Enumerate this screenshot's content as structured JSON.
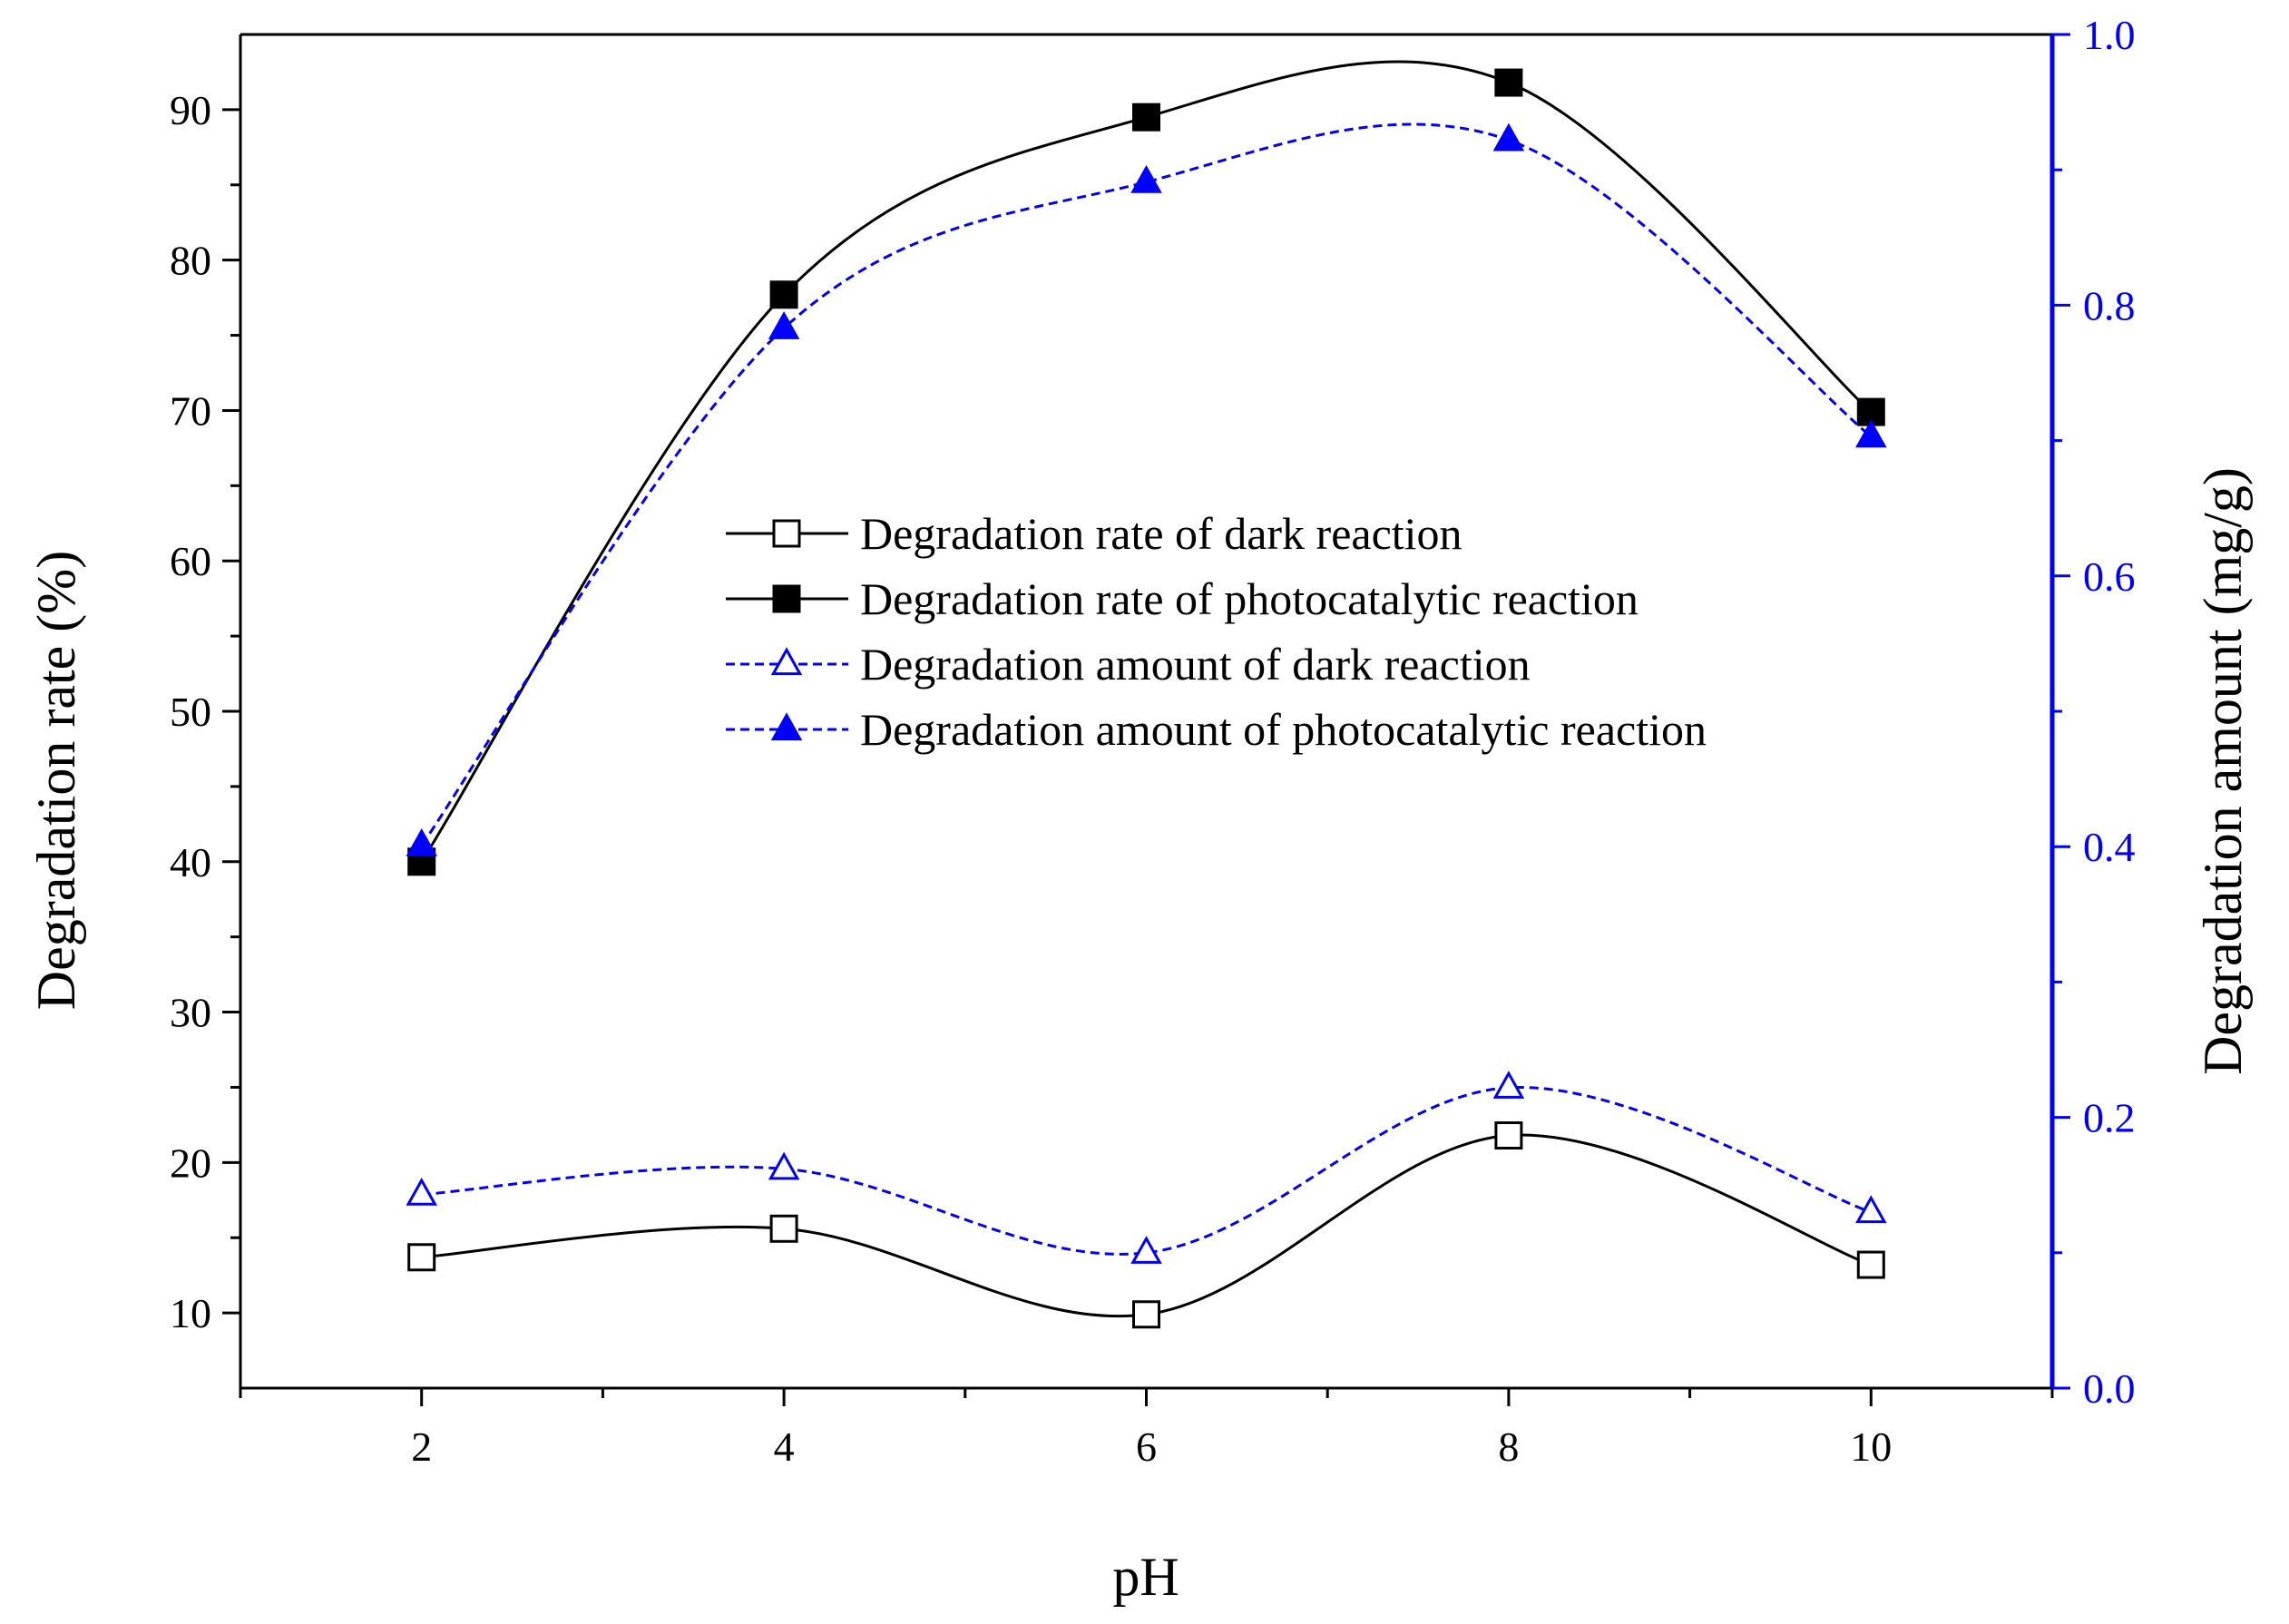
{
  "chart_data": {
    "type": "line",
    "title": "",
    "xlabel": "pH",
    "ylabel": "Degradation rate (%)",
    "y2label": "Degradation amount (mg/g)",
    "x": [
      2,
      4,
      6,
      8,
      10
    ],
    "xlim": [
      1,
      11
    ],
    "ylim": [
      5,
      95
    ],
    "y2lim": [
      0.0,
      1.0
    ],
    "xticks": [
      "2",
      "4",
      "6",
      "8",
      "10"
    ],
    "yticks": [
      "10",
      "20",
      "30",
      "40",
      "50",
      "60",
      "70",
      "80",
      "90"
    ],
    "y2ticks": [
      "0.0",
      "0.2",
      "0.4",
      "0.6",
      "0.8",
      "1.0"
    ],
    "legend_position": "center",
    "series": [
      {
        "name": "Degradation rate of dark reaction",
        "axis": "left",
        "color": "#000000",
        "marker": "square-open",
        "line": "solid",
        "values": [
          13.7,
          15.6,
          9.9,
          21.8,
          13.2
        ]
      },
      {
        "name": "Degradation rate of photocatalytic reaction",
        "axis": "left",
        "color": "#000000",
        "marker": "square-filled",
        "line": "solid",
        "values": [
          40.0,
          77.7,
          89.5,
          91.8,
          69.9
        ]
      },
      {
        "name": "Degradation amount of dark reaction",
        "axis": "right",
        "color": "#0000ff",
        "marker": "triangle-open",
        "line": "dashed",
        "values": [
          0.143,
          0.162,
          0.1,
          0.222,
          0.13
        ]
      },
      {
        "name": "Degradation amount of photocatalytic reaction",
        "axis": "right",
        "color": "#0000ff",
        "marker": "triangle-filled",
        "line": "dashed",
        "values": [
          0.401,
          0.783,
          0.891,
          0.922,
          0.703
        ]
      }
    ]
  }
}
